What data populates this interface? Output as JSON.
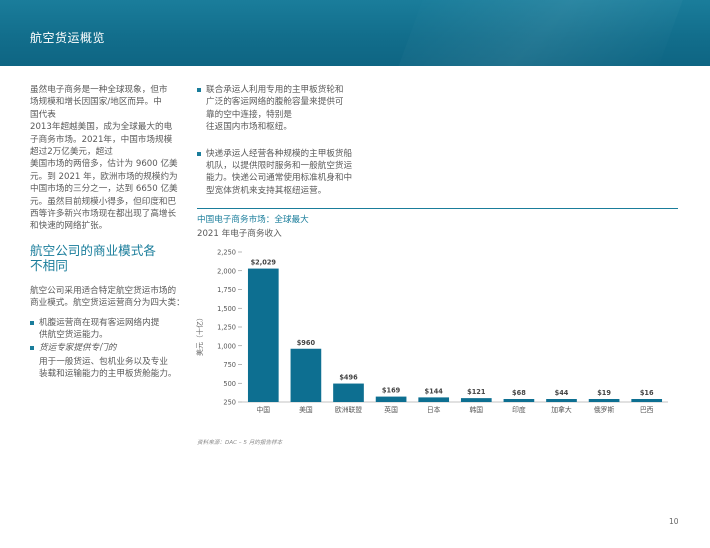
{
  "header": {
    "title": "航空货运概览"
  },
  "left": {
    "intro": "虽然电子商务是一种全球现象，但市\n场规模和增长因国家/地区而异。中\n国代表\n2013年超越美国，成为全球最大的电\n子商务市场。2021年，中国市场规模\n超过2万亿美元，超过\n美国市场的两倍多，估计为 9600 亿美\n元。到 2021 年，欧洲市场的规模约为\n中国市场的三分之一，达到 6650 亿美\n元。虽然目前规模小得多，但印度和巴\n西等许多新兴市场现在都出现了高增长\n和快速的网络扩张。",
    "heading": "航空公司的商业模式各\n不相同",
    "body": "航空公司采用适合特定航空货运市场的\n商业模式。航空货运运营商分为四大类：",
    "bullet1": "机腹运营商在现有客运网络内提\n供航空货运能力。",
    "bullet2": "货运专家提供专门的",
    "bullet2_sub": "用于一般货运、包机业务以及专业\n装载和运输能力的主甲板货舱能力。"
  },
  "right": {
    "bullet1": "联合承运人利用专用的主甲板货轮和\n广泛的客运网络的腹舱容量来提供可\n靠的空中连接，特别是\n往返国内市场和枢纽。",
    "bullet2": "快递承运人经营各种规模的主甲板货船\n机队，以提供限时服务和一般航空货运\n能力。快递公司通常使用标准机身和中\n型宽体货机来支持其枢纽运营。"
  },
  "chart_data": {
    "type": "bar",
    "title": "中国电子商务市场：全球最大",
    "subtitle": "2021 年电子商务收入",
    "ylabel": "美元（十亿）",
    "categories": [
      "中国",
      "美国",
      "欧洲联盟",
      "英国",
      "日本",
      "韩国",
      "印度",
      "加拿大",
      "俄罗斯",
      "巴西"
    ],
    "values": [
      2029,
      960,
      496,
      169,
      144,
      121,
      68,
      44,
      19,
      16
    ],
    "value_labels": [
      "$2,029",
      "$960",
      "$496",
      "$169",
      "$144",
      "$121",
      "$68",
      "$44",
      "$19",
      "$16"
    ],
    "yticks": [
      250,
      500,
      750,
      1000,
      1250,
      1500,
      1750,
      2000,
      2250
    ],
    "ytick_labels": [
      "250",
      "500",
      "750",
      "1,000",
      "1,250",
      "1,500",
      "1,750",
      "2,000",
      "2,250"
    ],
    "ylim": [
      0,
      2250
    ],
    "bar_color": "#0d6f91",
    "grid": false
  },
  "source": "资料来源：DAC – 5 月的报告样本",
  "page_number": "10"
}
